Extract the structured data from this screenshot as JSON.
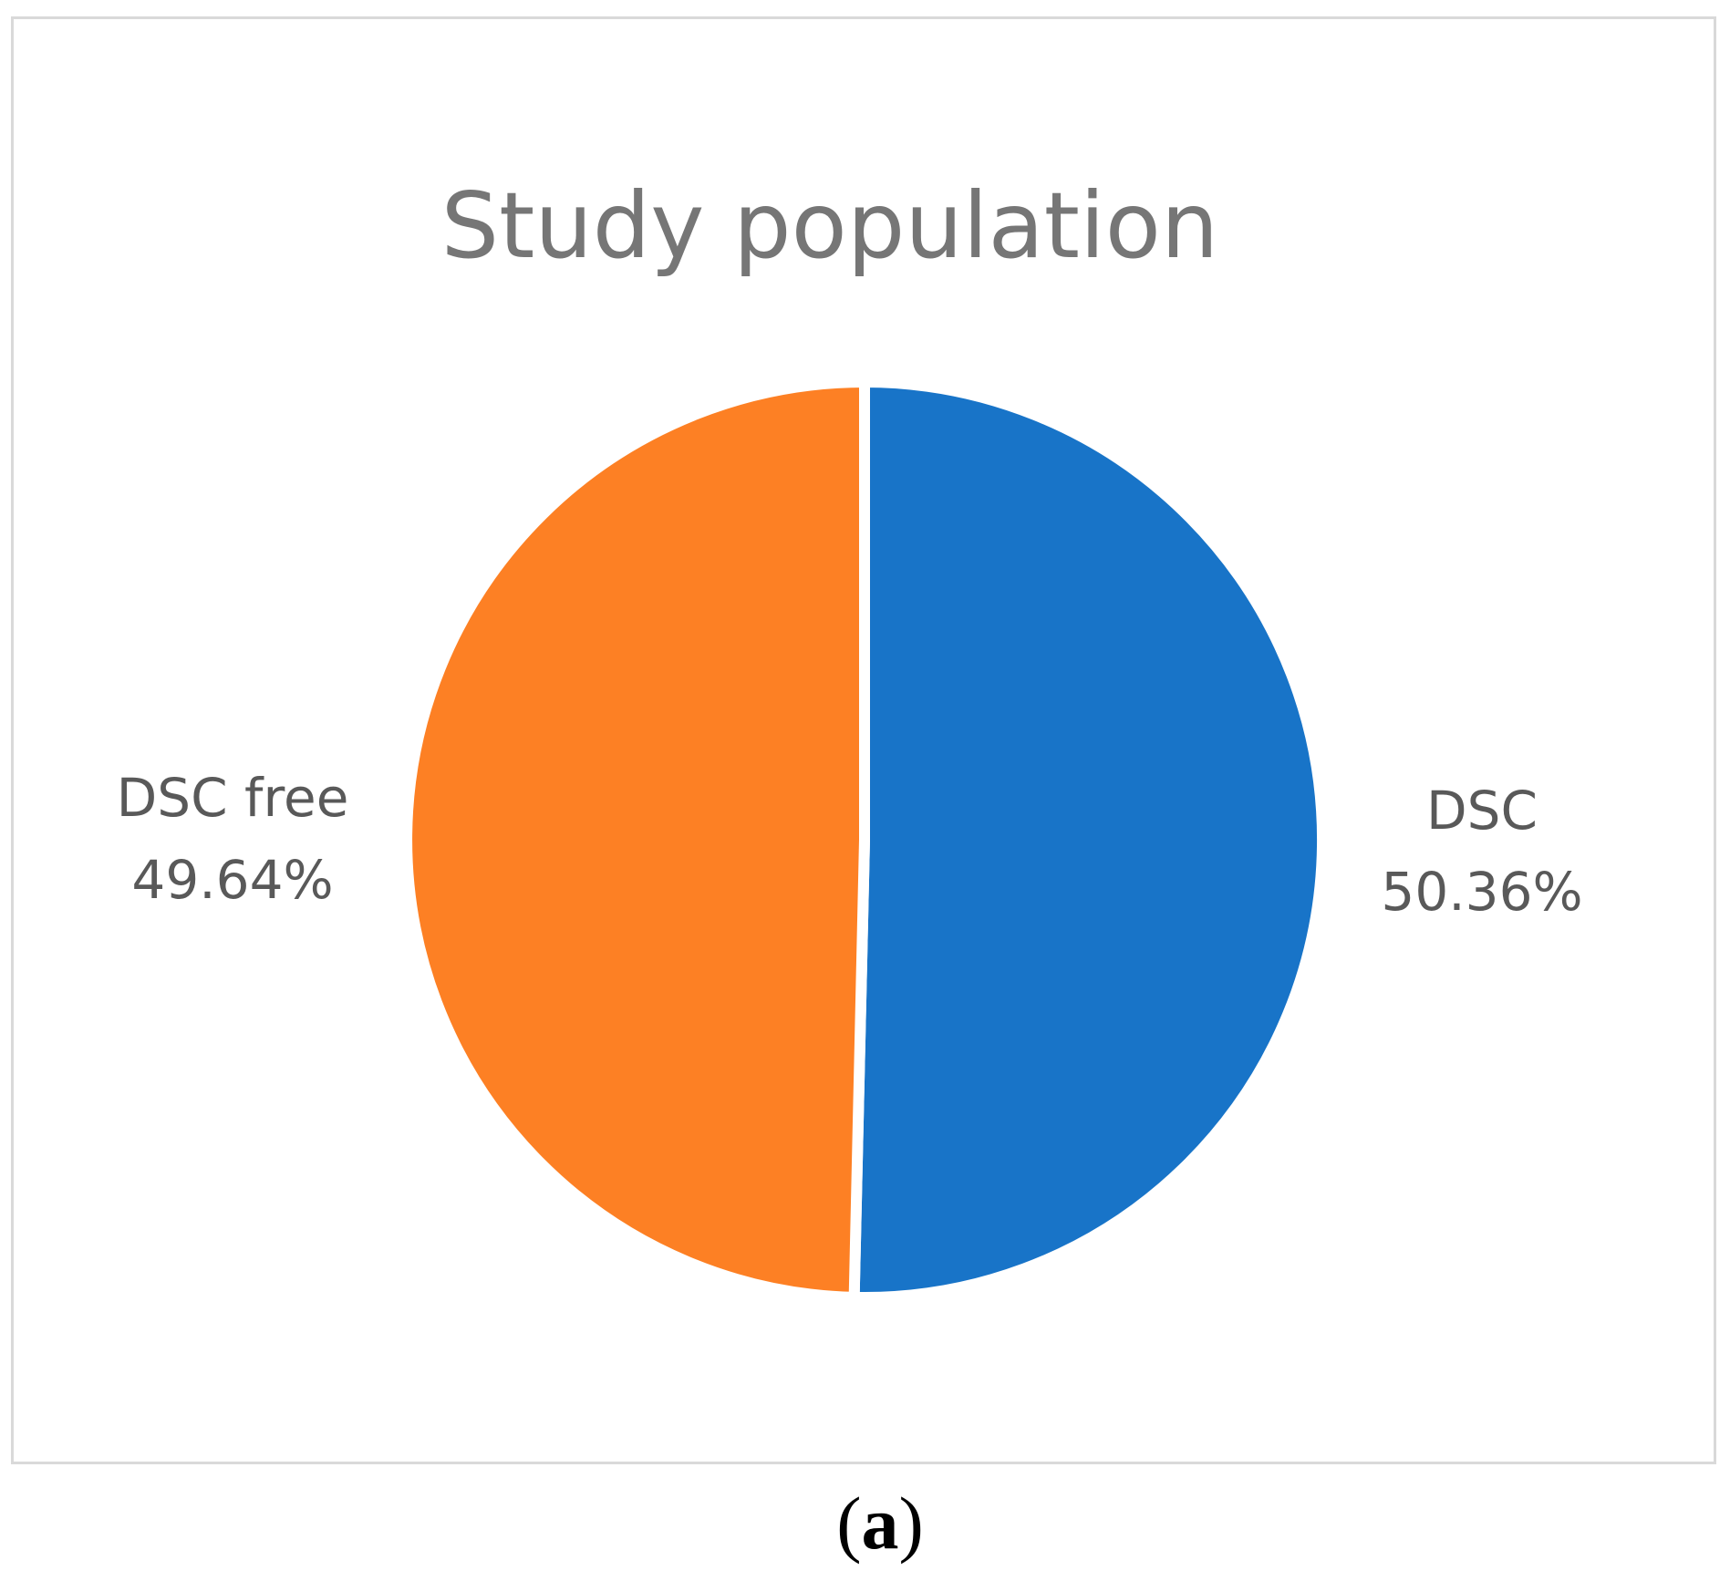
{
  "chart_data": {
    "type": "pie",
    "title": "Study population",
    "slices": [
      {
        "name": "DSC",
        "value": 50.36,
        "label_pct": "50.36%",
        "color": "#1874c8"
      },
      {
        "name": "DSC free",
        "value": 49.64,
        "label_pct": "49.64%",
        "color": "#fd8024"
      }
    ],
    "start_angle_deg": 0,
    "direction": "clockwise",
    "legend": "none",
    "separator_color": "#ffffff"
  },
  "panel": {
    "open": "(",
    "letter": "a",
    "close": ")"
  }
}
